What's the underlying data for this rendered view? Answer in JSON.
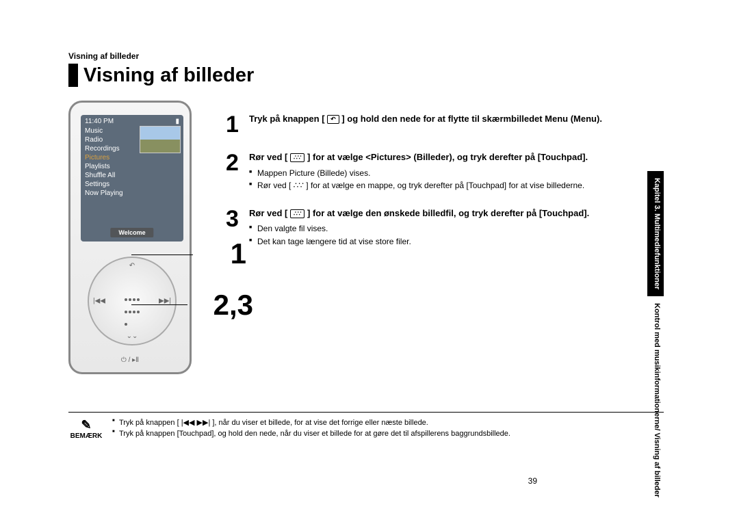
{
  "breadcrumb": "Visning af billeder",
  "title": "Visning af billeder",
  "device": {
    "time": "11:40 PM",
    "battery_icon": "battery-icon",
    "menu": [
      "Music",
      "Radio",
      "Recordings",
      "Pictures",
      "Playlists",
      "Shuffle All",
      "Settings",
      "Now Playing"
    ],
    "selected_index": 3,
    "welcome": "Welcome",
    "power_label": "⏻ / ▸Ⅱ"
  },
  "callouts": {
    "c1": "1",
    "c23": "2,3"
  },
  "touchpad_glyph": "∴∵",
  "back_glyph": "↶",
  "steps": [
    {
      "num": "1",
      "lead_parts": [
        "Tryk på knappen [ ",
        " ] og hold den nede for at flytte til skærmbilledet Menu (Menu)."
      ],
      "glyph": "↶",
      "bullets": []
    },
    {
      "num": "2",
      "lead_parts": [
        "Rør ved [ ",
        " ] for at vælge <Pictures> (Billeder), og tryk derefter på [Touchpad]."
      ],
      "glyph": "∴∵",
      "bullets": [
        "Mappen Picture (Billede) vises.",
        "Rør ved [ ∴∵ ] for at vælge en mappe, og tryk derefter på [Touchpad] for at vise billederne."
      ]
    },
    {
      "num": "3",
      "lead_parts": [
        "Rør ved [ ",
        " ] for at vælge den ønskede billedfil, og tryk derefter på [Touchpad]."
      ],
      "glyph": "∴∵",
      "bullets": [
        "Den valgte fil vises.",
        "Det kan tage længere tid at vise store filer."
      ]
    }
  ],
  "sidetab": {
    "black": "Kapitel 3. Multimediefunktioner",
    "white": "Kontrol med musikinformationerne/ Visning af billeder"
  },
  "note": {
    "label": "BEMÆRK",
    "bullets": [
      "Tryk på knappen [ |◀◀ ▶▶| ], når du viser et billede, for at vise det forrige eller næste billede.",
      "Tryk på knappen [Touchpad], og hold den nede, når du viser et billede for at gøre det til afspillerens baggrundsbillede."
    ]
  },
  "page_number": "39",
  "colors": {
    "selected_menu": "#d8a040",
    "screen_bg": "#5d6b7a"
  }
}
